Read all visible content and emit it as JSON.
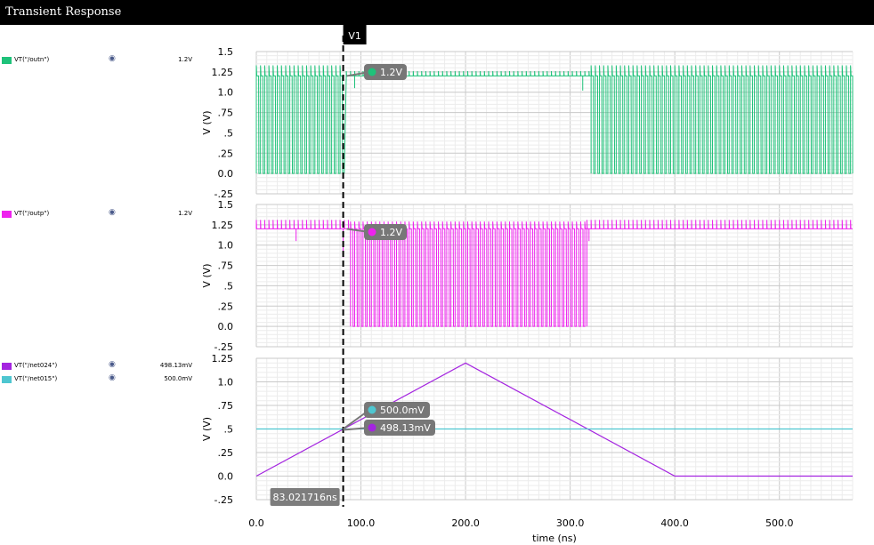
{
  "window": {
    "title": "Transient Response"
  },
  "icons": {
    "visibility": "eye-icon"
  },
  "colors": {
    "outn": "#1fc27a",
    "outp": "#ee22ee",
    "net024": "#a424e0",
    "net015": "#4ec6d0"
  },
  "legend": {
    "panel1": [
      {
        "name": "VT(\"/outn\")",
        "value": "1.2V"
      }
    ],
    "panel2": [
      {
        "name": "VT(\"/outp\")",
        "value": "1.2V"
      }
    ],
    "panel3": [
      {
        "name": "VT(\"/net024\")",
        "value": "498.13mV"
      },
      {
        "name": "VT(\"/net015\")",
        "value": "500.0mV"
      }
    ]
  },
  "cursor": {
    "name": "V1",
    "time_label": "83.021716ns",
    "time_ns": 83.021716
  },
  "markers": {
    "outn": "1.2V",
    "outp": "1.2V",
    "net015": "500.0mV",
    "net024": "498.13mV"
  },
  "chart_data": [
    {
      "type": "line",
      "ylabel": "V (V)",
      "ylim": [
        -0.25,
        1.5
      ],
      "y_ticks": [
        "1.5",
        "1.25",
        "1.0",
        ".75",
        ".5",
        ".25",
        "0.0",
        "-.25"
      ],
      "series": [
        {
          "name": "VT(\"/outn\")",
          "description_points": [
            {
              "t_ns": [
                0,
                85
              ],
              "behavior": "square wave 0 to 1.2 V, ~4 ns period, spikes to 1.33 V"
            },
            {
              "t_ns": [
                85,
                320
              ],
              "behavior": "settles near 1.2 V with small glitches"
            },
            {
              "t_ns": [
                320,
                570
              ],
              "behavior": "square wave 0 to 1.2 V, ~4 ns period"
            }
          ]
        }
      ]
    },
    {
      "type": "line",
      "ylabel": "V (V)",
      "ylim": [
        -0.25,
        1.5
      ],
      "y_ticks": [
        "1.5",
        "1.25",
        "1.0",
        ".75",
        ".5",
        ".25",
        "0.0",
        "-.25"
      ],
      "series": [
        {
          "name": "VT(\"/outp\")",
          "description_points": [
            {
              "t_ns": [
                0,
                90
              ],
              "behavior": "held near 1.2 V with glitches"
            },
            {
              "t_ns": [
                90,
                315
              ],
              "behavior": "square wave 0 to 1.2 V, ~4 ns period"
            },
            {
              "t_ns": [
                315,
                570
              ],
              "behavior": "held near 1.2 V with glitches"
            }
          ]
        }
      ]
    },
    {
      "type": "line",
      "ylabel": "V (V)",
      "xlabel": "time (ns)",
      "ylim": [
        -0.25,
        1.25
      ],
      "y_ticks": [
        "1.25",
        "1.0",
        ".75",
        ".5",
        ".25",
        "0.0",
        "-.25"
      ],
      "xlim": [
        0,
        570
      ],
      "x_ticks": [
        "0.0",
        "100.0",
        "200.0",
        "300.0",
        "400.0",
        "500.0"
      ],
      "series": [
        {
          "name": "VT(\"/net024\")",
          "x": [
            0,
            200,
            400,
            570
          ],
          "y": [
            0.0,
            1.2,
            0.0,
            0.0
          ]
        },
        {
          "name": "VT(\"/net015\")",
          "x": [
            0,
            570
          ],
          "y": [
            0.5,
            0.5
          ]
        }
      ]
    }
  ]
}
